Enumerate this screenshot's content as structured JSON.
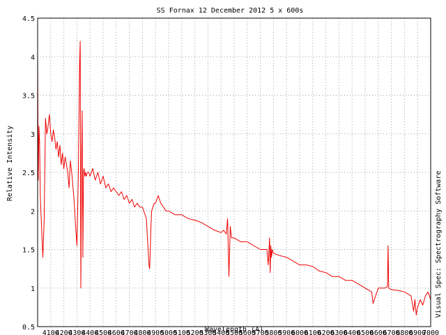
{
  "chart_data": {
    "type": "line",
    "title": "SS Fornax 12 December 2012 5 x 600s",
    "xlabel": "Wavelength (A)",
    "ylabel": "Relative Intensity",
    "side_note": "Visual Spec: Spectrography Software",
    "xlim": [
      4000,
      7000
    ],
    "ylim": [
      0.5,
      4.5
    ],
    "grid": true,
    "x_ticks": [
      4100,
      4200,
      4300,
      4400,
      4500,
      4600,
      4700,
      4800,
      4900,
      5000,
      5100,
      5200,
      5300,
      5400,
      5500,
      5600,
      5700,
      5800,
      5900,
      6000,
      6100,
      6200,
      6300,
      6400,
      6500,
      6600,
      6700,
      6800,
      6900,
      7000
    ],
    "y_ticks": [
      0.5,
      1,
      1.5,
      2,
      2.5,
      3,
      3.5,
      4,
      4.5
    ],
    "series": [
      {
        "color": "#ee0000",
        "x": [
          4000,
          4005,
          4010,
          4015,
          4020,
          4030,
          4040,
          4050,
          4060,
          4070,
          4080,
          4090,
          4100,
          4110,
          4120,
          4130,
          4140,
          4150,
          4160,
          4170,
          4180,
          4190,
          4200,
          4210,
          4220,
          4230,
          4240,
          4250,
          4260,
          4270,
          4280,
          4290,
          4300,
          4310,
          4320,
          4325,
          4330,
          4335,
          4340,
          4345,
          4350,
          4355,
          4360,
          4365,
          4370,
          4380,
          4390,
          4400,
          4420,
          4440,
          4460,
          4480,
          4500,
          4520,
          4540,
          4560,
          4580,
          4600,
          4620,
          4640,
          4660,
          4680,
          4700,
          4720,
          4740,
          4760,
          4780,
          4800,
          4820,
          4830,
          4840,
          4850,
          4855,
          4860,
          4865,
          4870,
          4880,
          4890,
          4900,
          4920,
          4940,
          4960,
          4980,
          5000,
          5050,
          5100,
          5150,
          5200,
          5250,
          5300,
          5350,
          5400,
          5420,
          5440,
          5450,
          5460,
          5470,
          5480,
          5500,
          5550,
          5600,
          5650,
          5700,
          5750,
          5760,
          5770,
          5775,
          5780,
          5785,
          5790,
          5800,
          5850,
          5900,
          5950,
          6000,
          6050,
          6100,
          6150,
          6200,
          6250,
          6300,
          6350,
          6400,
          6450,
          6500,
          6550,
          6560,
          6600,
          6650,
          6670,
          6675,
          6680,
          6700,
          6750,
          6800,
          6850,
          6870,
          6880,
          6890,
          6900,
          6920,
          6940,
          6960,
          6980,
          7000
        ],
        "values": [
          4.0,
          2.4,
          3.1,
          2.9,
          2.2,
          1.8,
          1.4,
          1.9,
          3.2,
          3.0,
          3.1,
          3.25,
          3.0,
          2.9,
          3.05,
          2.95,
          2.8,
          2.9,
          2.7,
          2.85,
          2.6,
          2.75,
          2.55,
          2.7,
          2.6,
          2.5,
          2.3,
          2.65,
          2.5,
          2.3,
          2.1,
          1.8,
          1.55,
          2.4,
          3.9,
          4.2,
          1.0,
          2.6,
          3.3,
          1.4,
          2.5,
          2.55,
          2.45,
          2.5,
          2.45,
          2.5,
          2.5,
          2.45,
          2.55,
          2.4,
          2.5,
          2.35,
          2.45,
          2.3,
          2.35,
          2.25,
          2.3,
          2.25,
          2.2,
          2.25,
          2.15,
          2.2,
          2.1,
          2.15,
          2.05,
          2.1,
          2.05,
          2.05,
          1.95,
          1.9,
          1.6,
          1.3,
          1.25,
          1.5,
          1.8,
          2.0,
          2.05,
          2.1,
          2.1,
          2.2,
          2.1,
          2.05,
          2.0,
          2.0,
          1.95,
          1.95,
          1.9,
          1.88,
          1.85,
          1.8,
          1.75,
          1.72,
          1.75,
          1.7,
          1.9,
          1.15,
          1.8,
          1.65,
          1.65,
          1.6,
          1.6,
          1.55,
          1.5,
          1.5,
          1.3,
          1.65,
          1.2,
          1.55,
          1.4,
          1.5,
          1.45,
          1.42,
          1.4,
          1.35,
          1.3,
          1.3,
          1.28,
          1.22,
          1.2,
          1.15,
          1.15,
          1.1,
          1.1,
          1.05,
          1.0,
          0.95,
          0.8,
          1.0,
          1.0,
          1.02,
          1.55,
          1.0,
          0.98,
          0.97,
          0.95,
          0.9,
          0.7,
          0.85,
          0.65,
          0.75,
          0.85,
          0.78,
          0.9,
          0.95,
          0.85
        ]
      }
    ]
  }
}
